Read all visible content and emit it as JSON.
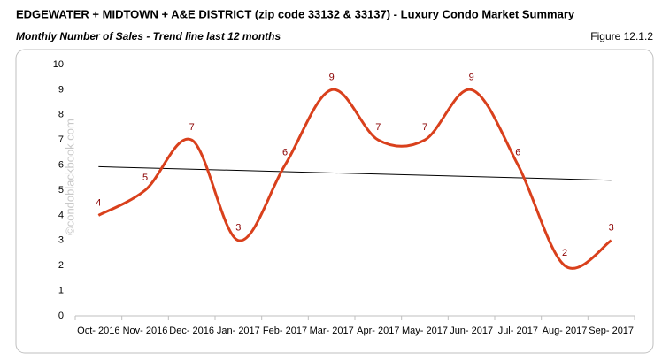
{
  "chart_data": {
    "type": "line",
    "title": "EDGEWATER + MIDTOWN + A&E DISTRICT (zip code 33132 & 33137) - Luxury Condo Market Summary",
    "subtitle": "Monthly Number of Sales - Trend line last 12 months",
    "figure_label": "Figure 12.1.2",
    "watermark": "©condoblackbook.com",
    "categories": [
      "Oct- 2016",
      "Nov- 2016",
      "Dec- 2016",
      "Jan- 2017",
      "Feb- 2017",
      "Mar- 2017",
      "Apr- 2017",
      "May- 2017",
      "Jun- 2017",
      "Jul- 2017",
      "Aug- 2017",
      "Sep- 2017"
    ],
    "values": [
      4,
      5,
      7,
      3,
      6,
      9,
      7,
      7,
      9,
      6,
      2,
      3
    ],
    "color": "#d9401c",
    "label_color": "#8b0000",
    "trendline": true,
    "trendline_color": "#000000",
    "smooth": true,
    "ylim": [
      0,
      10
    ],
    "yticks": [
      0,
      1,
      2,
      3,
      4,
      5,
      6,
      7,
      8,
      9,
      10
    ],
    "grid": false
  }
}
